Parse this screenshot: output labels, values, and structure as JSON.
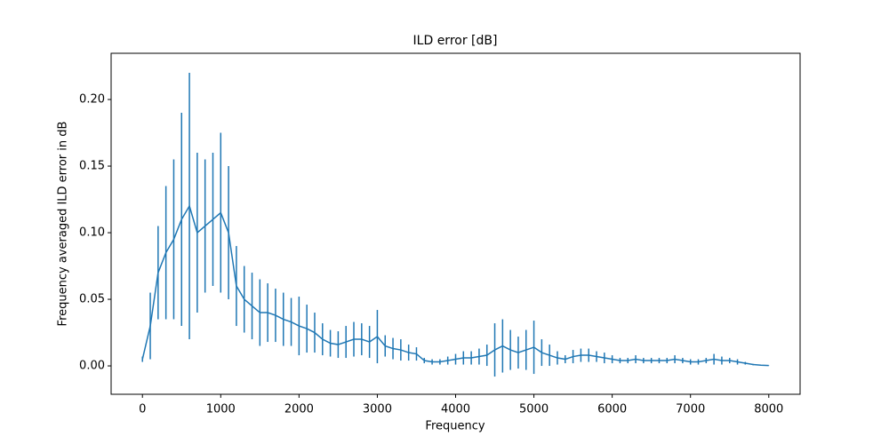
{
  "chart_data": {
    "type": "errorbar",
    "title": "ILD error [dB]",
    "xlabel": "Frequency",
    "ylabel": "Frequency averaged ILD error in dB",
    "color": "#1f77b4",
    "x": [
      0,
      100,
      200,
      300,
      400,
      500,
      600,
      700,
      800,
      900,
      1000,
      1100,
      1200,
      1300,
      1400,
      1500,
      1600,
      1700,
      1800,
      1900,
      2000,
      2100,
      2200,
      2300,
      2400,
      2500,
      2600,
      2700,
      2800,
      2900,
      3000,
      3100,
      3200,
      3300,
      3400,
      3500,
      3600,
      3700,
      3800,
      3900,
      4000,
      4100,
      4200,
      4300,
      4400,
      4500,
      4600,
      4700,
      4800,
      4900,
      5000,
      5100,
      5200,
      5300,
      5400,
      5500,
      5600,
      5700,
      5800,
      5900,
      6000,
      6100,
      6200,
      6300,
      6400,
      6500,
      6600,
      6700,
      6800,
      6900,
      7000,
      7100,
      7200,
      7300,
      7400,
      7500,
      7600,
      7700,
      7800,
      7900,
      8000
    ],
    "values": [
      0.005,
      0.03,
      0.07,
      0.085,
      0.095,
      0.11,
      0.12,
      0.1,
      0.105,
      0.11,
      0.115,
      0.1,
      0.06,
      0.05,
      0.045,
      0.04,
      0.04,
      0.038,
      0.035,
      0.033,
      0.03,
      0.028,
      0.025,
      0.02,
      0.017,
      0.016,
      0.018,
      0.02,
      0.02,
      0.018,
      0.022,
      0.015,
      0.013,
      0.012,
      0.01,
      0.009,
      0.004,
      0.003,
      0.003,
      0.004,
      0.005,
      0.006,
      0.006,
      0.007,
      0.008,
      0.012,
      0.015,
      0.012,
      0.01,
      0.012,
      0.014,
      0.01,
      0.008,
      0.006,
      0.005,
      0.007,
      0.008,
      0.008,
      0.007,
      0.006,
      0.005,
      0.004,
      0.004,
      0.005,
      0.004,
      0.004,
      0.004,
      0.004,
      0.005,
      0.004,
      0.003,
      0.003,
      0.004,
      0.005,
      0.004,
      0.004,
      0.003,
      0.002,
      0.001,
      0.0005,
      0.0003
    ],
    "errors": [
      0.002,
      0.025,
      0.035,
      0.05,
      0.06,
      0.08,
      0.1,
      0.06,
      0.05,
      0.05,
      0.06,
      0.05,
      0.03,
      0.025,
      0.025,
      0.025,
      0.022,
      0.02,
      0.02,
      0.018,
      0.022,
      0.018,
      0.015,
      0.012,
      0.01,
      0.01,
      0.012,
      0.013,
      0.012,
      0.012,
      0.02,
      0.008,
      0.008,
      0.008,
      0.006,
      0.005,
      0.002,
      0.002,
      0.002,
      0.003,
      0.004,
      0.005,
      0.005,
      0.006,
      0.008,
      0.02,
      0.02,
      0.015,
      0.012,
      0.015,
      0.02,
      0.01,
      0.008,
      0.005,
      0.003,
      0.005,
      0.005,
      0.005,
      0.004,
      0.004,
      0.003,
      0.002,
      0.002,
      0.003,
      0.002,
      0.002,
      0.002,
      0.002,
      0.003,
      0.002,
      0.002,
      0.002,
      0.002,
      0.004,
      0.003,
      0.002,
      0.002,
      0.001,
      0.0005,
      0.0002,
      0.0001
    ],
    "xlim": [
      -400,
      8400
    ],
    "ylim": [
      -0.0213,
      0.2347
    ],
    "xticks": [
      0,
      1000,
      2000,
      3000,
      4000,
      5000,
      6000,
      7000,
      8000
    ],
    "yticks": [
      {
        "value": 0,
        "label": "0.00"
      },
      {
        "value": 0.05,
        "label": "0.05"
      },
      {
        "value": 0.1,
        "label": "0.10"
      },
      {
        "value": 0.15,
        "label": "0.15"
      },
      {
        "value": 0.2,
        "label": "0.20"
      }
    ]
  }
}
